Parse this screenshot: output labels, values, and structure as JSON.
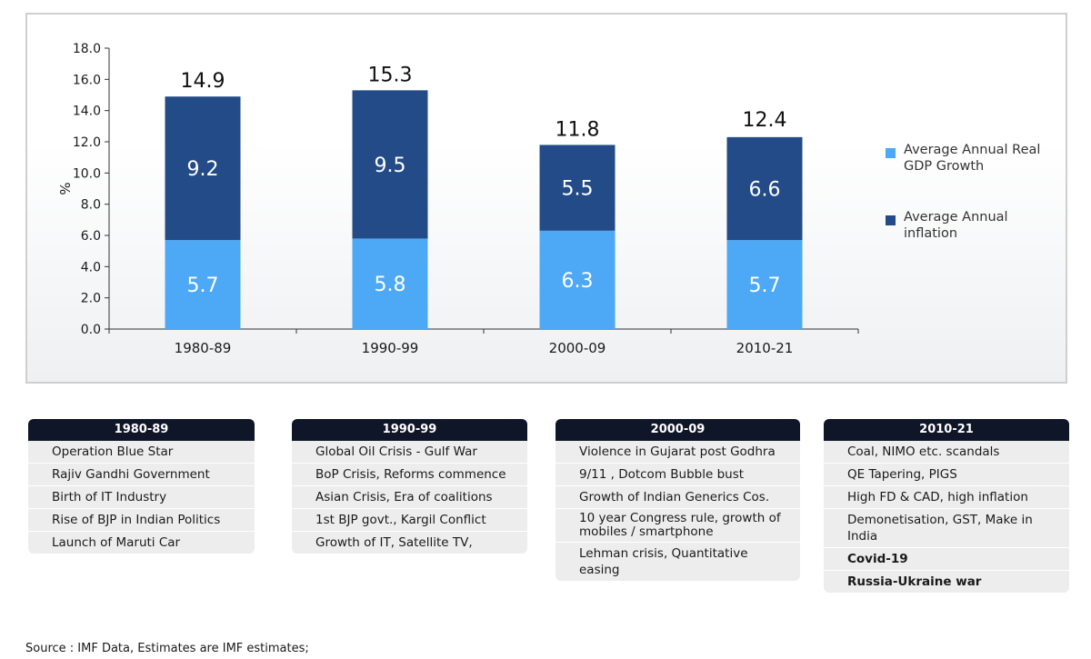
{
  "chart_data": {
    "type": "bar",
    "stacked": true,
    "ylabel": "%",
    "xlabel": "",
    "title": "",
    "ylim": [
      0,
      18
    ],
    "yticks": [
      "0.0",
      "2.0",
      "4.0",
      "6.0",
      "8.0",
      "10.0",
      "12.0",
      "14.0",
      "16.0",
      "18.0"
    ],
    "categories": [
      "1980-89",
      "1990-99",
      "2000-09",
      "2010-21"
    ],
    "series": [
      {
        "name": "Average Annual Real GDP Growth",
        "legend_lines": [
          "Average Annual Real",
          "GDP Growth"
        ],
        "color": "#4da9f5",
        "values": [
          5.7,
          5.8,
          6.3,
          5.7
        ],
        "labels": [
          "5.7",
          "5.8",
          "6.3",
          "5.7"
        ]
      },
      {
        "name": "Average Annual inflation",
        "legend_lines": [
          "Average Annual",
          "inflation"
        ],
        "color": "#234b87",
        "values": [
          9.2,
          9.5,
          5.5,
          6.6
        ],
        "labels": [
          "9.2",
          "9.5",
          "5.5",
          "6.6"
        ]
      }
    ],
    "totals": [
      14.9,
      15.3,
      11.8,
      12.4
    ],
    "total_labels": [
      "14.9",
      "15.3",
      "11.8",
      "12.4"
    ],
    "legend_position": "right",
    "grid": false
  },
  "tables": [
    {
      "header": "1980-89",
      "rows": [
        "Operation Blue Star",
        "Rajiv Gandhi Government",
        "Birth of IT Industry",
        "Rise of BJP in Indian Politics",
        "Launch of Maruti Car"
      ]
    },
    {
      "header": "1990-99",
      "rows": [
        "Global Oil Crisis - Gulf War",
        "BoP Crisis, Reforms commence",
        "Asian Crisis, Era of coalitions",
        "1st BJP govt., Kargil Conflict",
        "Growth of IT, Satellite TV,"
      ]
    },
    {
      "header": "2000-09",
      "rows": [
        "Violence in Gujarat post Godhra",
        "9/11 , Dotcom Bubble bust",
        "Growth of Indian Generics Cos.",
        "10 year Congress rule, growth of mobiles / smartphone",
        "Lehman crisis, Quantitative easing"
      ]
    },
    {
      "header": "2010-21",
      "rows": [
        "Coal, NIMO etc. scandals",
        "QE Tapering, PIGS",
        "High FD & CAD, high inflation",
        "Demonetisation, GST, Make in India",
        "Covid-19",
        "Russia-Ukraine war"
      ],
      "bold_rows": [
        4,
        5
      ]
    }
  ],
  "source_note": "Source : IMF Data, Estimates are IMF estimates;"
}
